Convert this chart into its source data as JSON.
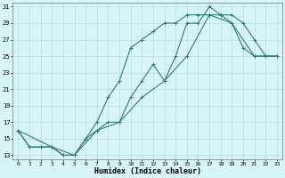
{
  "xlabel": "Humidex (Indice chaleur)",
  "bg_color": "#d8f5f5",
  "line_color": "#2e7d6e",
  "grid_color": "#b8e0e0",
  "xlim": [
    0,
    23
  ],
  "ylim": [
    13,
    31
  ],
  "xticks": [
    0,
    1,
    2,
    3,
    4,
    5,
    6,
    7,
    8,
    9,
    10,
    11,
    12,
    13,
    14,
    15,
    16,
    17,
    18,
    19,
    20,
    21,
    22,
    23
  ],
  "yticks": [
    13,
    15,
    17,
    19,
    21,
    23,
    25,
    27,
    29,
    31
  ],
  "line1_x": [
    0,
    1,
    2,
    3,
    4,
    5,
    6,
    7,
    8,
    9,
    10,
    11,
    12,
    13,
    14,
    15,
    16,
    17,
    18,
    19,
    20,
    21,
    22,
    23
  ],
  "line1_y": [
    16,
    14,
    14,
    14,
    13,
    13,
    15,
    16,
    17,
    17,
    20,
    22,
    24,
    22,
    25,
    29,
    29,
    31,
    30,
    29,
    26,
    25,
    25,
    25
  ],
  "line2_x": [
    0,
    1,
    2,
    3,
    4,
    5,
    6,
    7,
    8,
    9,
    10,
    11,
    12,
    13,
    14,
    15,
    16,
    17,
    18,
    19,
    20,
    21,
    22,
    23
  ],
  "line2_y": [
    16,
    14,
    14,
    14,
    13,
    13,
    15,
    17,
    20,
    22,
    26,
    27,
    28,
    29,
    29,
    30,
    30,
    30,
    30,
    30,
    29,
    27,
    25,
    25
  ],
  "line3_x": [
    0,
    3,
    5,
    7,
    9,
    11,
    13,
    15,
    17,
    19,
    21,
    23
  ],
  "line3_y": [
    16,
    14,
    13,
    16,
    17,
    20,
    22,
    25,
    30,
    29,
    25,
    25
  ]
}
